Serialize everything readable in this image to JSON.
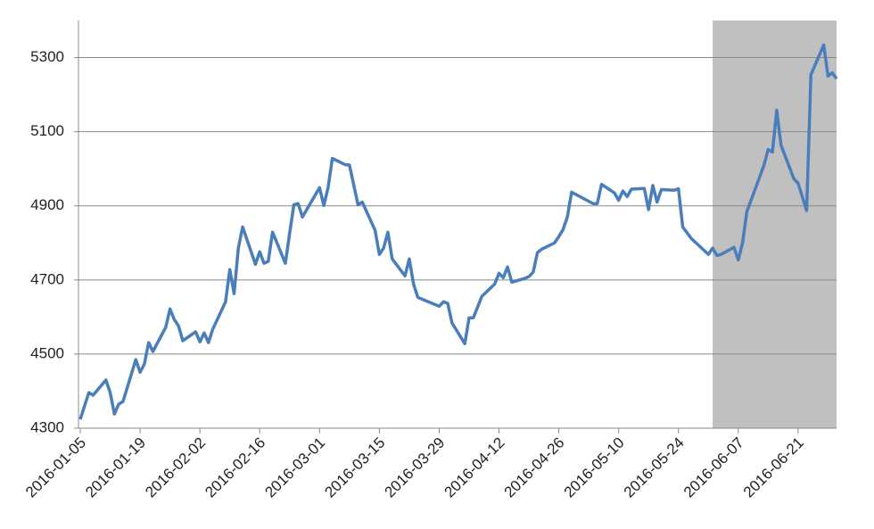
{
  "chart_data": {
    "type": "line",
    "x": [
      "2016-01-05",
      "2016-01-07",
      "2016-01-08",
      "2016-01-11",
      "2016-01-12",
      "2016-01-13",
      "2016-01-14",
      "2016-01-15",
      "2016-01-18",
      "2016-01-19",
      "2016-01-20",
      "2016-01-21",
      "2016-01-22",
      "2016-01-25",
      "2016-01-26",
      "2016-01-27",
      "2016-01-28",
      "2016-01-29",
      "2016-02-01",
      "2016-02-02",
      "2016-02-03",
      "2016-02-04",
      "2016-02-05",
      "2016-02-08",
      "2016-02-09",
      "2016-02-10",
      "2016-02-11",
      "2016-02-12",
      "2016-02-15",
      "2016-02-16",
      "2016-02-17",
      "2016-02-18",
      "2016-02-19",
      "2016-02-22",
      "2016-02-23",
      "2016-02-24",
      "2016-02-25",
      "2016-02-26",
      "2016-03-01",
      "2016-03-02",
      "2016-03-03",
      "2016-03-04",
      "2016-03-07",
      "2016-03-08",
      "2016-03-10",
      "2016-03-11",
      "2016-03-14",
      "2016-03-15",
      "2016-03-16",
      "2016-03-17",
      "2016-03-18",
      "2016-03-21",
      "2016-03-22",
      "2016-03-23",
      "2016-03-24",
      "2016-03-29",
      "2016-03-30",
      "2016-03-31",
      "2016-04-01",
      "2016-04-04",
      "2016-04-05",
      "2016-04-06",
      "2016-04-08",
      "2016-04-11",
      "2016-04-12",
      "2016-04-13",
      "2016-04-14",
      "2016-04-15",
      "2016-04-18",
      "2016-04-19",
      "2016-04-20",
      "2016-04-21",
      "2016-04-22",
      "2016-04-25",
      "2016-04-26",
      "2016-04-27",
      "2016-04-28",
      "2016-04-29",
      "2016-05-04",
      "2016-05-05",
      "2016-05-06",
      "2016-05-09",
      "2016-05-10",
      "2016-05-11",
      "2016-05-12",
      "2016-05-13",
      "2016-05-16",
      "2016-05-17",
      "2016-05-18",
      "2016-05-19",
      "2016-05-20",
      "2016-05-23",
      "2016-05-24",
      "2016-05-25",
      "2016-05-27",
      "2016-05-31",
      "2016-06-01",
      "2016-06-02",
      "2016-06-03",
      "2016-06-06",
      "2016-06-07",
      "2016-06-08",
      "2016-06-09",
      "2016-06-13",
      "2016-06-14",
      "2016-06-15",
      "2016-06-16",
      "2016-06-17",
      "2016-06-20",
      "2016-06-21",
      "2016-06-23",
      "2016-06-24",
      "2016-06-27",
      "2016-06-28",
      "2016-06-29",
      "2016-06-30"
    ],
    "series": [
      {
        "color": "#4a7ebb",
        "values": [
          4324,
          4396,
          4389,
          4430,
          4396,
          4338,
          4365,
          4372,
          4485,
          4451,
          4473,
          4531,
          4507,
          4572,
          4622,
          4593,
          4576,
          4536,
          4560,
          4533,
          4557,
          4531,
          4567,
          4641,
          4728,
          4663,
          4786,
          4843,
          4742,
          4776,
          4745,
          4750,
          4829,
          4745,
          4826,
          4903,
          4906,
          4870,
          4949,
          4901,
          4949,
          5028,
          5011,
          5010,
          4903,
          4910,
          4834,
          4769,
          4786,
          4829,
          4757,
          4711,
          4757,
          4689,
          4653,
          4629,
          4641,
          4637,
          4584,
          4528,
          4598,
          4598,
          4656,
          4689,
          4718,
          4706,
          4735,
          4694,
          4704,
          4709,
          4721,
          4774,
          4783,
          4800,
          4817,
          4836,
          4870,
          4937,
          4906,
          4906,
          4958,
          4935,
          4915,
          4940,
          4925,
          4945,
          4947,
          4890,
          4955,
          4910,
          4944,
          4942,
          4946,
          4843,
          4812,
          4769,
          4786,
          4766,
          4769,
          4788,
          4754,
          4800,
          4884,
          5009,
          5052,
          5045,
          5158,
          5064,
          4973,
          4961,
          4887,
          5254,
          5334,
          5250,
          5259,
          5243
        ]
      }
    ],
    "xlim": [
      "2016-01-05",
      "2016-06-30"
    ],
    "xticks": [
      "2016-01-05",
      "2016-01-19",
      "2016-02-02",
      "2016-02-16",
      "2016-03-01",
      "2016-03-15",
      "2016-03-29",
      "2016-04-12",
      "2016-04-26",
      "2016-05-10",
      "2016-05-24",
      "2016-06-07",
      "2016-06-21"
    ],
    "ylim": [
      4300,
      5400
    ],
    "yticks": [
      4300,
      4500,
      4700,
      4900,
      5100,
      5300
    ],
    "grid": true,
    "shade": {
      "range": [
        "2016-06-01",
        "2016-06-30"
      ],
      "color": "#c0c0c0"
    }
  }
}
